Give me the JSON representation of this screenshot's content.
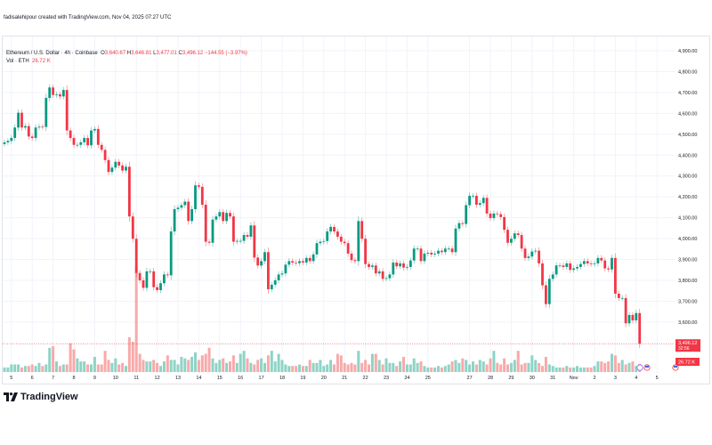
{
  "credit": "fadisalehipour created with TradingView.com, Nov 04, 2025 07:27 UTC",
  "legend": {
    "symbol": "Ethereum / U.S. Dollar · 4h · Coinbase",
    "o_label": "O",
    "o": "3,640.67",
    "h_label": "H",
    "h": "3,646.81",
    "l_label": "L",
    "l": "3,477.01",
    "c_label": "C",
    "c": "3,496.12",
    "change": "−144.55 (−3.97%)",
    "vol_label": "Vol · ETH",
    "vol": "26.72 K"
  },
  "brand": "TradingView",
  "colors": {
    "up": "#089981",
    "down": "#f23645",
    "vol_up": "#8ed3c6",
    "vol_down": "#f7aaa9",
    "grid": "#f0f3fa"
  },
  "chart_data": {
    "type": "candlestick",
    "interval": "4h",
    "ylim": [
      3440,
      4920
    ],
    "grid": true,
    "y_ticks": [
      "4,900.00",
      "4,800.00",
      "4,700.00",
      "4,600.00",
      "4,500.00",
      "4,400.00",
      "4,300.00",
      "4,200.00",
      "4,100.00",
      "4,000.00",
      "3,900.00",
      "3,800.00",
      "3,700.00",
      "3,600.00"
    ],
    "y_tick_values": [
      4900,
      4800,
      4700,
      4600,
      4500,
      4400,
      4300,
      4200,
      4100,
      4000,
      3900,
      3800,
      3700,
      3600
    ],
    "x_ticks": [
      "5",
      "6",
      "7",
      "8",
      "9",
      "10",
      "11",
      "12",
      "13",
      "14",
      "15",
      "16",
      "17",
      "18",
      "19",
      "20",
      "21",
      "22",
      "23",
      "24",
      "25",
      "27",
      "28",
      "29",
      "30",
      "31",
      "Nov",
      "2",
      "3",
      "4",
      "5"
    ],
    "x_tick_candle_index": [
      2,
      8,
      14,
      20,
      26,
      32,
      38,
      44,
      50,
      56,
      62,
      68,
      74,
      80,
      86,
      92,
      98,
      104,
      110,
      116,
      122,
      134,
      140,
      146,
      152,
      158,
      164,
      170,
      176,
      182,
      188
    ],
    "last_price": "3,496.12",
    "last_price_value": 3496.12,
    "countdown": "32:56",
    "last_volume": "26.72 K",
    "close": [
      4461,
      4468,
      4482,
      4532,
      4603,
      4532,
      4539,
      4489,
      4482,
      4532,
      4536,
      4535,
      4674,
      4724,
      4688,
      4691,
      4681,
      4712,
      4518,
      4482,
      4449,
      4449,
      4461,
      4482,
      4447,
      4518,
      4525,
      4449,
      4425,
      4376,
      4319,
      4340,
      4368,
      4350,
      4326,
      4344,
      4106,
      3999,
      3835,
      3800,
      3764,
      3843,
      3843,
      3767,
      3753,
      3786,
      3828,
      3824,
      4034,
      4141,
      4148,
      4160,
      4177,
      4084,
      4141,
      4255,
      4248,
      4162,
      3985,
      3980,
      4091,
      4106,
      4127,
      4084,
      4123,
      4106,
      3985,
      3989,
      3989,
      4017,
      4009,
      4063,
      3909,
      3871,
      3892,
      3935,
      3757,
      3779,
      3800,
      3828,
      3833,
      3875,
      3892,
      3885,
      3882,
      3892,
      3885,
      3907,
      3892,
      3924,
      3978,
      3985,
      3988,
      4034,
      4056,
      4034,
      4009,
      3985,
      3978,
      3928,
      3897,
      3892,
      4084,
      3999,
      3878,
      3864,
      3871,
      3833,
      3843,
      3807,
      3810,
      3828,
      3885,
      3867,
      3881,
      3861,
      3864,
      3895,
      3952,
      3952,
      3892,
      3928,
      3932,
      3924,
      3928,
      3942,
      3935,
      3952,
      3952,
      3935,
      4048,
      4074,
      4070,
      4160,
      4205,
      4205,
      4162,
      4170,
      4195,
      4120,
      4098,
      4120,
      4117,
      4103,
      4042,
      3980,
      3999,
      4025,
      4017,
      3952,
      3907,
      3914,
      3938,
      3942,
      3881,
      3776,
      3686,
      3807,
      3828,
      3871,
      3871,
      3864,
      3881,
      3850,
      3857,
      3864,
      3878,
      3892,
      3881,
      3878,
      3881,
      3907,
      3895,
      3857,
      3852,
      3907,
      3736,
      3715,
      3715,
      3594,
      3634,
      3608,
      3643,
      3496.12
    ],
    "volume_k": [
      15,
      15,
      25,
      25,
      25,
      15,
      20,
      20,
      25,
      20,
      30,
      20,
      25,
      80,
      85,
      35,
      20,
      25,
      25,
      95,
      75,
      45,
      35,
      35,
      25,
      25,
      50,
      25,
      25,
      70,
      40,
      30,
      45,
      25,
      30,
      20,
      115,
      100,
      350,
      60,
      40,
      35,
      35,
      40,
      30,
      20,
      35,
      55,
      40,
      40,
      25,
      50,
      45,
      40,
      50,
      65,
      40,
      55,
      60,
      80,
      45,
      30,
      40,
      45,
      30,
      35,
      55,
      30,
      60,
      70,
      45,
      30,
      25,
      40,
      45,
      30,
      55,
      70,
      35,
      60,
      40,
      25,
      20,
      20,
      20,
      25,
      20,
      20,
      40,
      30,
      30,
      40,
      20,
      25,
      40,
      25,
      60,
      55,
      30,
      25,
      30,
      25,
      70,
      30,
      40,
      25,
      60,
      60,
      40,
      25,
      45,
      30,
      30,
      20,
      35,
      50,
      25,
      25,
      45,
      30,
      35,
      20,
      15,
      15,
      15,
      20,
      15,
      20,
      25,
      35,
      40,
      30,
      45,
      40,
      25,
      35,
      25,
      40,
      35,
      25,
      45,
      70,
      30,
      25,
      45,
      25,
      30,
      40,
      70,
      25,
      30,
      30,
      55,
      40,
      30,
      20,
      50,
      25,
      20,
      15,
      15,
      15,
      20,
      15,
      15,
      20,
      15,
      15,
      15,
      15,
      20,
      35,
      35,
      30,
      35,
      60,
      55,
      30,
      40,
      25,
      30,
      35,
      20,
      26.72
    ]
  }
}
